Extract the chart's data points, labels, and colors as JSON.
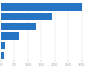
{
  "values": [
    300,
    190,
    130,
    65,
    15,
    10
  ],
  "bar_color": "#2575c4",
  "background_color": "#ffffff",
  "xlim": [
    0,
    360
  ],
  "bar_height": 0.75,
  "tick_color": "#aaaaaa",
  "tick_fontsize": 2.8,
  "x_ticks": [
    0,
    50,
    100,
    150,
    200,
    250,
    300
  ],
  "x_tick_labels": [
    "0",
    "50",
    "100",
    "150",
    "200",
    "250",
    "300"
  ],
  "grid_color": "#e0e0e0"
}
